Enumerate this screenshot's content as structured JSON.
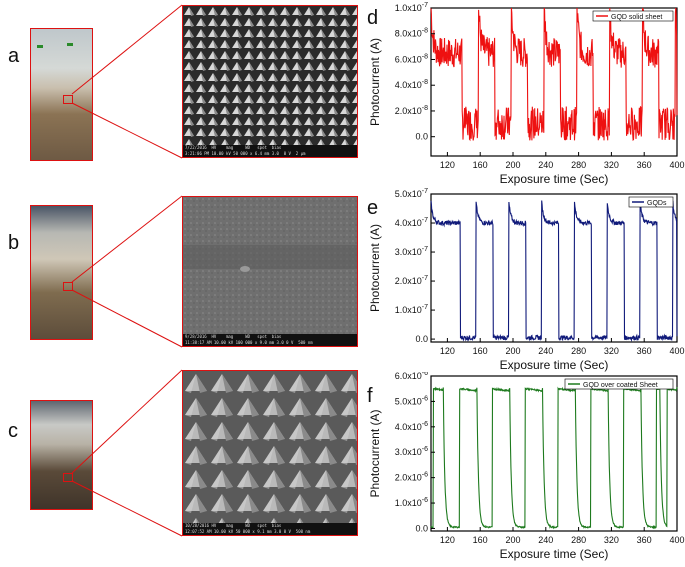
{
  "panels": {
    "a": "a",
    "b": "b",
    "c": "c",
    "d": "d",
    "e": "e",
    "f": "f"
  },
  "sem": {
    "a": {
      "line1": "7/22/2016  HV    mag     WD   spot  bias",
      "line2": "3:21:06 PM 10.00 kV 50 000 x 6.4 mm 3.0  0 V",
      "scale": "2 μm"
    },
    "b": {
      "line1": "9/28/2016  HV    mag     WD   spot  bias",
      "line2": "11:38:17 AM 10.00 kV 100 000 x 9.0 mm 3.0 0 V",
      "scale": "500 nm"
    },
    "c": {
      "line1": "10/28/2016 HV    mag     WD   spot  bias",
      "line2": "12:07:52 AM 10.00 kV 50 000 x 9.1 mm 3.0 0 V",
      "scale": "500 nm"
    }
  },
  "colors": {
    "d": "#ee1111",
    "e": "#101a7a",
    "f": "#1e7a1e",
    "inset": "#d11111"
  },
  "chart_data": [
    {
      "id": "d",
      "type": "line",
      "xlabel": "Exposure time (Sec)",
      "ylabel": "Photocurrent (A)",
      "xlim": [
        100,
        400
      ],
      "ylim": [
        -1.5e-08,
        1e-07
      ],
      "xticks": [
        120,
        160,
        200,
        240,
        280,
        320,
        360,
        400
      ],
      "yticks": [
        0,
        2e-08,
        4e-08,
        6e-08,
        8e-08,
        1e-07
      ],
      "ytick_labels": [
        "0.0",
        "2.0x10-8",
        "4.0x10-8",
        "6.0x10-8",
        "8.0x10-8",
        "1.0x10-7"
      ],
      "yexp_idx": [
        null,
        -8,
        -8,
        -8,
        -8,
        -7
      ],
      "ytick_mant": [
        "0.0",
        "2.0x10",
        "4.0x10",
        "6.0x10",
        "8.0x10",
        "1.0x10"
      ],
      "series": [
        {
          "name": "GQD solid sheet",
          "on_level": 6.5e-08,
          "off_level": 5e-09,
          "spike": 1e-07,
          "on_times": [
            [
              100,
              138
            ],
            [
              158,
              178
            ],
            [
              198,
              218
            ],
            [
              238,
              258
            ],
            [
              278,
              298
            ],
            [
              318,
              338
            ],
            [
              358,
              378
            ],
            [
              398,
              400
            ]
          ],
          "noise": 1.2e-08
        }
      ]
    },
    {
      "id": "e",
      "type": "line",
      "xlabel": "Exposure time (Sec)",
      "ylabel": "Photocurrent (A)",
      "xlim": [
        100,
        400
      ],
      "ylim": [
        -1e-08,
        5e-07
      ],
      "xticks": [
        120,
        160,
        200,
        240,
        280,
        320,
        360,
        400
      ],
      "yticks": [
        0,
        1e-07,
        2e-07,
        3e-07,
        4e-07,
        5e-07
      ],
      "ytick_labels": [
        "0.0",
        "1.0x10-7",
        "2.0x10-7",
        "3.0x10-7",
        "4.0x10-7",
        "5.0x10-7"
      ],
      "yexp_idx": [
        null,
        -7,
        -7,
        -7,
        -7,
        -7
      ],
      "ytick_mant": [
        "0.0",
        "1.0x10",
        "2.0x10",
        "3.0x10",
        "4.0x10",
        "5.0x10"
      ],
      "series": [
        {
          "name": "GQDs",
          "on_level": 4e-07,
          "off_level": 5e-09,
          "spike": 4.7e-07,
          "on_times": [
            [
              100,
              136
            ],
            [
              155,
              176
            ],
            [
              195,
              216
            ],
            [
              235,
              256
            ],
            [
              275,
              296
            ],
            [
              315,
              336
            ],
            [
              355,
              376
            ],
            [
              395,
              400
            ]
          ],
          "noise": 8e-09
        }
      ]
    },
    {
      "id": "f",
      "type": "line",
      "xlabel": "Exposure time (Sec)",
      "ylabel": "Photocurrent (A)",
      "xlim": [
        100,
        400
      ],
      "ylim": [
        -1e-07,
        6e-06
      ],
      "xticks": [
        120,
        160,
        200,
        240,
        280,
        320,
        360,
        400
      ],
      "yticks": [
        0,
        1e-06,
        2e-06,
        3e-06,
        4e-06,
        5e-06,
        6e-06
      ],
      "ytick_labels": [
        "0.0",
        "1.0x10-6",
        "2.0x10-6",
        "3.0x10-6",
        "4.0x10-6",
        "5.0x10-6",
        "6.0x10-6"
      ],
      "yexp_idx": [
        null,
        -6,
        -6,
        -6,
        -6,
        -6,
        -6
      ],
      "ytick_mant": [
        "0.0",
        "1.0x10",
        "2.0x10",
        "3.0x10",
        "4.0x10",
        "5.0x10",
        "6.0x10"
      ],
      "series": [
        {
          "name": "GQD over coated Sheet",
          "on_level": 5.5e-06,
          "off_level": 5e-08,
          "spike": 5.75e-06,
          "on_times": [
            [
              103,
              115
            ],
            [
              135,
              156
            ],
            [
              175,
              196
            ],
            [
              215,
              236
            ],
            [
              255,
              276
            ],
            [
              295,
              316
            ],
            [
              335,
              356
            ],
            [
              375,
              379
            ],
            [
              388,
              400
            ]
          ],
          "noise": 3e-08
        }
      ]
    }
  ]
}
